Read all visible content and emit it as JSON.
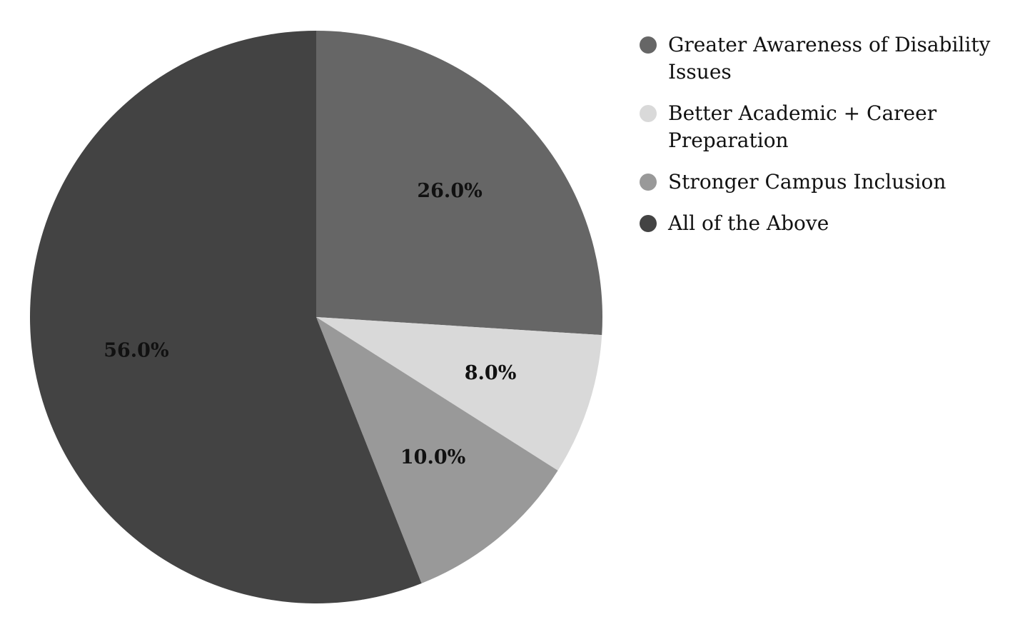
{
  "chart_data": {
    "type": "pie",
    "categories": [
      "Greater Awareness of Disability Issues",
      "Better Academic + Career Preparation",
      "Stronger Campus Inclusion",
      "All of the Above"
    ],
    "values": [
      26.0,
      8.0,
      10.0,
      56.0
    ],
    "value_labels": [
      "26.0%",
      "8.0%",
      "10.0%",
      "56.0%"
    ],
    "colors": [
      "#666666",
      "#d9d9d9",
      "#999999",
      "#434343"
    ],
    "start_angle": "12 o'clock",
    "direction": "clockwise",
    "legend_placement": "right",
    "title": ""
  }
}
